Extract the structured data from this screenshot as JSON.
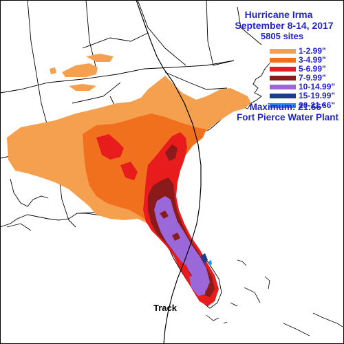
{
  "title": {
    "line1": "Hurricane Irma",
    "line2": "September 8-14, 2017",
    "line3": "5805 sites"
  },
  "legend": [
    {
      "label": "1-2.99\"",
      "color": "#f5a04e"
    },
    {
      "label": "3-4.99\"",
      "color": "#f0701e"
    },
    {
      "label": "5-6.99\"",
      "color": "#e81c1c"
    },
    {
      "label": "7-9.99\"",
      "color": "#8b1a1a"
    },
    {
      "label": "10-14.99\"",
      "color": "#9a68d8"
    },
    {
      "label": "15-19.99\"",
      "color": "#1a3d8c"
    },
    {
      "label": "20-21.66\"",
      "color": "#2b8ee8"
    }
  ],
  "maximum": {
    "line1": "Maximum: 21.66\"",
    "line2": "Fort Pierce Water Plant"
  },
  "track_label": "Track"
}
